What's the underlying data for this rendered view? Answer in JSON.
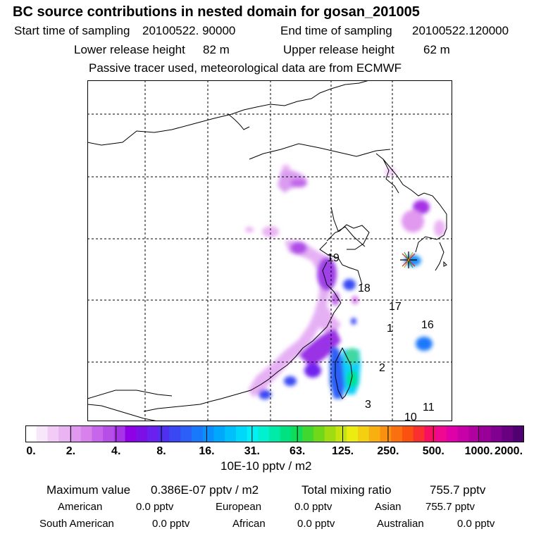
{
  "title": "BC  source contributions in nested domain for gosan_201005",
  "sampling": {
    "start_label": "Start time of sampling",
    "start_value": "20100522. 90000",
    "end_label": "End time of sampling",
    "end_value": "20100522.120000"
  },
  "release": {
    "lower_label": "Lower release height",
    "lower_value": "82 m",
    "upper_label": "Upper release height",
    "upper_value": "62 m"
  },
  "note": "Passive tracer used, meteorological data are from ECMWF",
  "map": {
    "receptor": "gosan",
    "labels": [
      "19",
      "18",
      "17",
      "1",
      "16",
      "2",
      "3",
      "11",
      "10"
    ]
  },
  "colorbar": {
    "units": "10E-10 pptv / m2",
    "ticks": [
      "0.",
      "2.",
      "4.",
      "8.",
      "16.",
      "31.",
      "63.",
      "125.",
      "250.",
      "500.",
      "1000.",
      "2000."
    ],
    "colors": [
      "#ffffff",
      "#f8e6fb",
      "#f2ccf7",
      "#eab3f3",
      "#e199ef",
      "#d880ec",
      "#c766ea",
      "#b84ee8",
      "#a633e6",
      "#9000e6",
      "#7a10e6",
      "#6a20ee",
      "#5030f0",
      "#3a48f4",
      "#2a60f8",
      "#1a78fa",
      "#0a90fc",
      "#00a8fc",
      "#00c0fc",
      "#00d8fa",
      "#00f0f6",
      "#00f0d0",
      "#00eaa8",
      "#00e280",
      "#10dc58",
      "#40d830",
      "#70d818",
      "#a0dc10",
      "#c8e410",
      "#ecec10",
      "#f4d010",
      "#f8b010",
      "#fa9010",
      "#fa7010",
      "#fa5010",
      "#fa3030",
      "#f81060",
      "#f00890",
      "#e000a8",
      "#c800a8",
      "#b000a0",
      "#980098",
      "#800090",
      "#680080",
      "#500070"
    ]
  },
  "summary": {
    "max_label": "Maximum value",
    "max_value": "0.386E-07 pptv / m2",
    "total_label": "Total mixing ratio",
    "total_value": "755.7 pptv",
    "regions": [
      {
        "name": "American",
        "value": "0.0 pptv"
      },
      {
        "name": "European",
        "value": "0.0 pptv"
      },
      {
        "name": "Asian",
        "value": "755.7 pptv"
      },
      {
        "name": "South American",
        "value": "0.0 pptv"
      },
      {
        "name": "African",
        "value": "0.0 pptv"
      },
      {
        "name": "Australian",
        "value": "0.0 pptv"
      }
    ]
  }
}
